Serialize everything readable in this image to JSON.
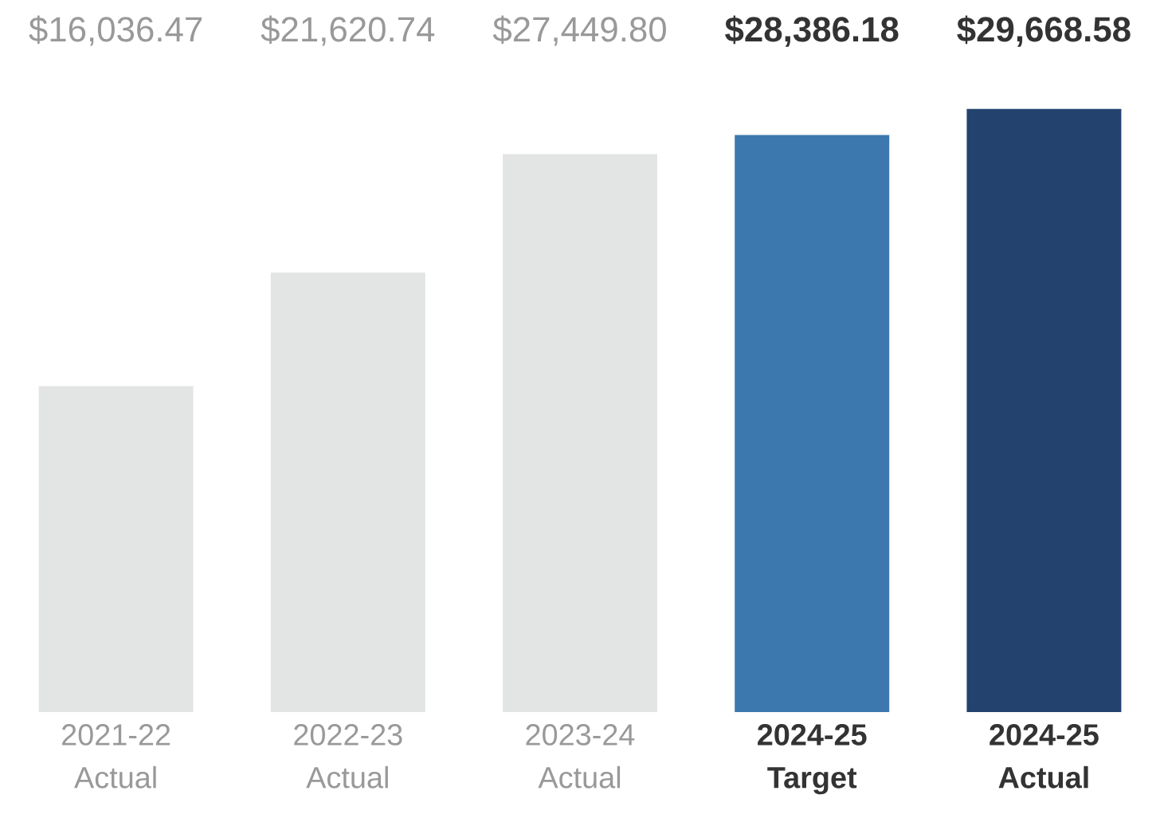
{
  "chart_data": {
    "type": "bar",
    "categories": [
      "2021-22 Actual",
      "2022-23 Actual",
      "2023-24 Actual",
      "2024-25 Target",
      "2024-25 Actual"
    ],
    "values": [
      16036.47,
      21620.74,
      27449.8,
      28386.18,
      29668.58
    ],
    "value_labels": [
      "$16,036.47",
      "$21,620.74",
      "$27,449.80",
      "$28,386.18",
      "$29,668.58"
    ],
    "colors": [
      "#e3e5e4",
      "#e3e5e4",
      "#e3e5e4",
      "#3c78ae",
      "#23436e"
    ]
  }
}
